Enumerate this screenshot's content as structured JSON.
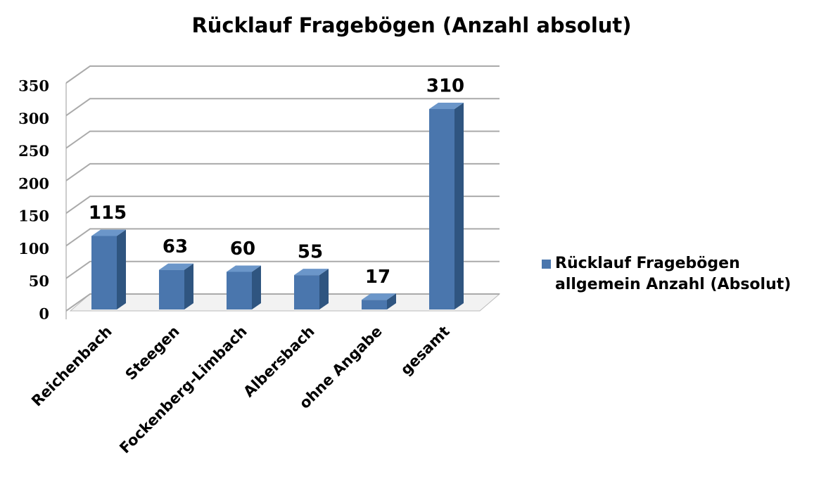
{
  "chart_data": {
    "type": "bar",
    "title": "Rücklauf Fragebögen  (Anzahl absolut)",
    "categories": [
      "Reichenbach",
      "Steegen",
      "Fockenberg-Limbach",
      "Albersbach",
      "ohne Angabe",
      "gesamt"
    ],
    "series": [
      {
        "name": "Rücklauf Fragebögen allgemein Anzahl (Absolut)",
        "color": "#4a76ad",
        "values": [
          115,
          63,
          60,
          55,
          17,
          310
        ]
      }
    ],
    "ylim": [
      0,
      350
    ],
    "yticks": [
      0,
      50,
      100,
      150,
      200,
      250,
      300,
      350
    ],
    "grid": true,
    "legend": "right"
  }
}
